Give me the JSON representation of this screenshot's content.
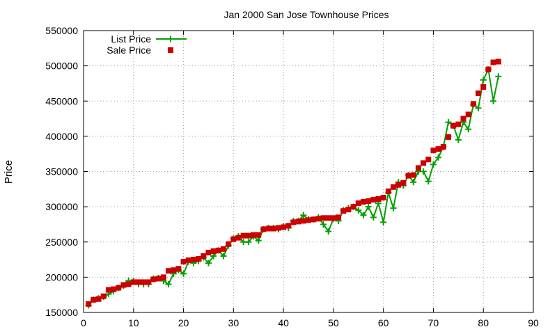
{
  "chart_data": {
    "type": "line",
    "title": "Jan 2000 San Jose Townhouse Prices",
    "xlabel": "",
    "ylabel": "Price",
    "xlim": [
      0,
      90
    ],
    "ylim": [
      150000,
      550000
    ],
    "xticks": [
      0,
      10,
      20,
      30,
      40,
      50,
      60,
      70,
      80,
      90
    ],
    "yticks": [
      150000,
      200000,
      250000,
      300000,
      350000,
      400000,
      450000,
      500000,
      550000
    ],
    "grid": true,
    "legend_position": "top-left",
    "series": [
      {
        "name": "List Price",
        "style": "line-plus",
        "color": "#00a000",
        "x": [
          1,
          2,
          3,
          4,
          5,
          6,
          7,
          8,
          9,
          10,
          11,
          12,
          13,
          14,
          15,
          16,
          17,
          18,
          19,
          20,
          21,
          22,
          23,
          24,
          25,
          26,
          27,
          28,
          29,
          30,
          31,
          32,
          33,
          34,
          35,
          36,
          37,
          38,
          39,
          40,
          41,
          42,
          43,
          44,
          45,
          46,
          47,
          48,
          49,
          50,
          51,
          52,
          53,
          54,
          55,
          56,
          57,
          58,
          59,
          60,
          61,
          62,
          63,
          64,
          65,
          66,
          67,
          68,
          69,
          70,
          71,
          72,
          73,
          74,
          75,
          76,
          77,
          78,
          79,
          80,
          81,
          82,
          83
        ],
        "values": [
          160000,
          168000,
          170000,
          172000,
          176000,
          180000,
          185000,
          188000,
          195000,
          195000,
          190000,
          190000,
          190000,
          198000,
          199000,
          195000,
          190000,
          205000,
          210000,
          205000,
          222000,
          220000,
          223000,
          228000,
          220000,
          230000,
          238000,
          230000,
          245000,
          255000,
          258000,
          250000,
          250000,
          258000,
          252000,
          268000,
          270000,
          270000,
          268000,
          272000,
          270000,
          280000,
          280000,
          288000,
          282000,
          282000,
          285000,
          275000,
          265000,
          283000,
          280000,
          295000,
          298000,
          300000,
          295000,
          288000,
          300000,
          285000,
          305000,
          278000,
          320000,
          298000,
          335000,
          330000,
          345000,
          335000,
          350000,
          350000,
          336000,
          360000,
          370000,
          385000,
          420000,
          415000,
          395000,
          420000,
          410000,
          445000,
          440000,
          480000,
          495000,
          450000,
          485000
        ]
      },
      {
        "name": "Sale Price",
        "style": "points-square",
        "color": "#cc0000",
        "x": [
          1,
          2,
          3,
          4,
          5,
          6,
          7,
          8,
          9,
          10,
          11,
          12,
          13,
          14,
          15,
          16,
          17,
          18,
          19,
          20,
          21,
          22,
          23,
          24,
          25,
          26,
          27,
          28,
          29,
          30,
          31,
          32,
          33,
          34,
          35,
          36,
          37,
          38,
          39,
          40,
          41,
          42,
          43,
          44,
          45,
          46,
          47,
          48,
          49,
          50,
          51,
          52,
          53,
          54,
          55,
          56,
          57,
          58,
          59,
          60,
          61,
          62,
          63,
          64,
          65,
          66,
          67,
          68,
          69,
          70,
          71,
          72,
          73,
          74,
          75,
          76,
          77,
          78,
          79,
          80,
          81,
          82,
          83
        ],
        "values": [
          162000,
          168000,
          169000,
          173000,
          182000,
          183000,
          185000,
          189000,
          190000,
          193000,
          193000,
          193000,
          193000,
          197000,
          198000,
          200000,
          209000,
          210000,
          212000,
          222000,
          224000,
          225000,
          226000,
          230000,
          235000,
          237000,
          238000,
          240000,
          247000,
          254000,
          256000,
          259000,
          259000,
          260000,
          260000,
          268000,
          269000,
          269000,
          270000,
          271000,
          273000,
          278000,
          279000,
          280000,
          281000,
          282000,
          283000,
          284000,
          284000,
          284000,
          285000,
          294000,
          296000,
          300000,
          305000,
          307000,
          308000,
          310000,
          311000,
          313000,
          322000,
          328000,
          331000,
          334000,
          344000,
          345000,
          355000,
          362000,
          367000,
          380000,
          382000,
          385000,
          399000,
          415000,
          417000,
          425000,
          431000,
          446000,
          461000,
          470000,
          495000,
          505000,
          506000
        ]
      }
    ]
  }
}
